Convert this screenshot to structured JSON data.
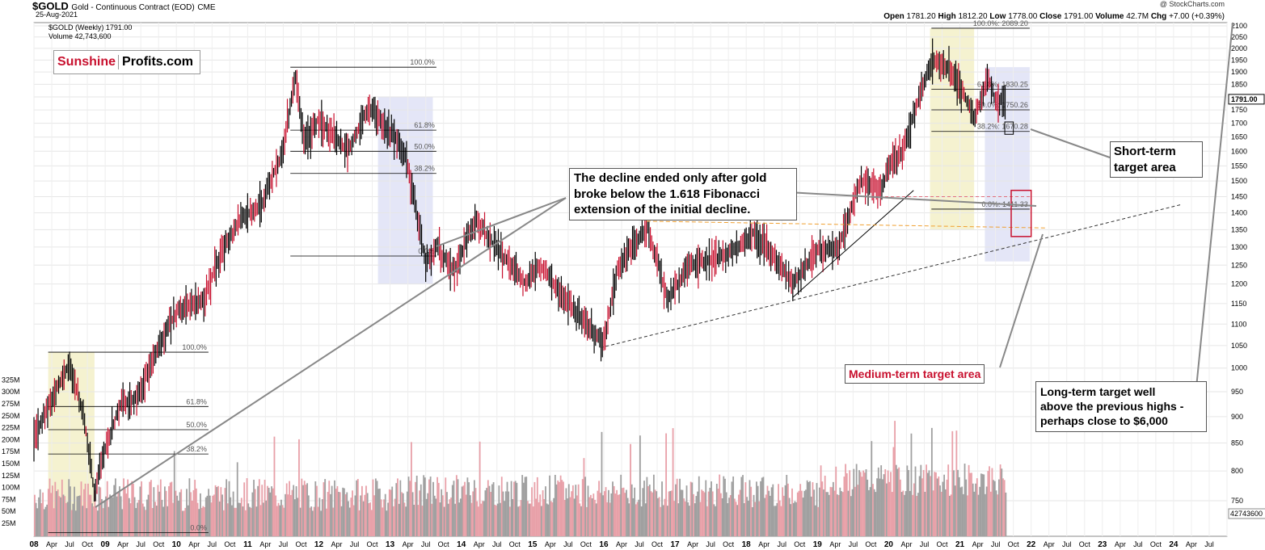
{
  "header": {
    "symbol": "$GOLD",
    "description": "Gold - Continuous Contract (EOD)",
    "exchange": "CME",
    "date": "25-Aug-2021",
    "legend_price": "$GOLD (Weekly) 1791.00",
    "legend_volume": "Volume 42,743,600",
    "credit": "@ StockCharts.com",
    "ohlc": {
      "open_label": "Open",
      "open": "1781.20",
      "high_label": "High",
      "high": "1812.20",
      "low_label": "Low",
      "low": "1778.00",
      "close_label": "Close",
      "close": "1791.00",
      "volume_label": "Volume",
      "volume": "42.7M",
      "chg_label": "Chg",
      "chg": "+7.00 (+0.39%)"
    }
  },
  "branding": {
    "part1": "Sunshine",
    "part2": "Profits.com"
  },
  "annotations": {
    "decline_note": [
      "The decline ended only after gold",
      "broke below the 1.618 Fibonacci",
      "extension of the initial decline."
    ],
    "medium_term": "Medium-term target area",
    "short_term": [
      "Short-term",
      "target area"
    ],
    "long_term": [
      "Long-term target well",
      "above the previous highs -",
      "perhaps close to $6,000"
    ]
  },
  "colors": {
    "up_candle": "#000000",
    "down_candle": "#c8102e",
    "volume_up": "#a0a0a0",
    "volume_down": "#e8a0a8",
    "highlight_yellow": "#f5f2d0",
    "highlight_blue": "#e4e6f7",
    "target_box": "#c8102e",
    "orange_line": "#f0a030"
  },
  "chart_data": {
    "type": "line",
    "title": "$GOLD Gold - Continuous Contract (EOD) CME",
    "x_ticks": [
      "08",
      "Apr",
      "Jul",
      "Oct",
      "09",
      "Apr",
      "Jul",
      "Oct",
      "10",
      "Apr",
      "Jul",
      "Oct",
      "11",
      "Apr",
      "Jul",
      "Oct",
      "12",
      "Apr",
      "Jul",
      "Oct",
      "13",
      "Apr",
      "Jul",
      "Oct",
      "14",
      "Apr",
      "Jul",
      "Oct",
      "15",
      "Apr",
      "Jul",
      "Oct",
      "16",
      "Apr",
      "Jul",
      "Oct",
      "17",
      "Apr",
      "Jul",
      "Oct",
      "18",
      "Apr",
      "Jul",
      "Oct",
      "19",
      "Apr",
      "Jul",
      "Oct",
      "20",
      "Apr",
      "Jul",
      "Oct",
      "21",
      "Apr",
      "Jul",
      "Oct",
      "22",
      "Apr",
      "Jul",
      "Oct",
      "23",
      "Apr",
      "Jul",
      "Oct",
      "24",
      "Apr",
      "Jul"
    ],
    "y_price_ticks": [
      750,
      800,
      850,
      900,
      950,
      1000,
      1050,
      1100,
      1150,
      1200,
      1250,
      1300,
      1350,
      1400,
      1450,
      1500,
      1550,
      1600,
      1650,
      1700,
      1750,
      1800,
      1850,
      1900,
      1950,
      2000,
      2050,
      2100
    ],
    "y_volume_ticks": [
      "25M",
      "50M",
      "75M",
      "100M",
      "125M",
      "150M",
      "175M",
      "200M",
      "225M",
      "250M",
      "275M",
      "300M",
      "325M"
    ],
    "last_price_label": "1791.00",
    "last_volume_label": "42743600",
    "series": [
      {
        "name": "$GOLD (Weekly)",
        "x": [
          2008.0,
          2008.2,
          2008.5,
          2008.7,
          2008.85,
          2009.0,
          2009.2,
          2009.45,
          2009.9,
          2010.0,
          2010.4,
          2010.55,
          2010.9,
          2011.2,
          2011.5,
          2011.67,
          2011.8,
          2012.0,
          2012.2,
          2012.4,
          2012.7,
          2012.9,
          2013.2,
          2013.5,
          2013.65,
          2013.9,
          2014.2,
          2014.4,
          2014.9,
          2015.1,
          2015.5,
          2015.9,
          2016.0,
          2016.2,
          2016.6,
          2016.9,
          2017.2,
          2017.6,
          2017.9,
          2018.1,
          2018.5,
          2018.65,
          2019.0,
          2019.3,
          2019.6,
          2019.9,
          2020.0,
          2020.2,
          2020.6,
          2020.9,
          2021.2,
          2021.4,
          2021.5,
          2021.65
        ],
        "y": [
          860,
          920,
          1010,
          900,
          760,
          840,
          920,
          940,
          1100,
          1130,
          1160,
          1250,
          1380,
          1430,
          1600,
          1890,
          1620,
          1720,
          1650,
          1600,
          1760,
          1700,
          1600,
          1250,
          1300,
          1230,
          1380,
          1320,
          1200,
          1250,
          1150,
          1070,
          1060,
          1240,
          1360,
          1160,
          1250,
          1270,
          1300,
          1340,
          1250,
          1200,
          1290,
          1300,
          1500,
          1470,
          1550,
          1600,
          1950,
          1900,
          1720,
          1880,
          1780,
          1791
        ]
      }
    ],
    "fibonacci_labels": [
      {
        "label": "100.0%",
        "value": 1920
      },
      {
        "label": "61.8%",
        "value": 1675
      },
      {
        "label": "50.0%",
        "value": 1600
      },
      {
        "label": "38.2%",
        "value": 1525
      },
      {
        "label": "0.0%",
        "value": 1275
      },
      {
        "label": "100.0%",
        "value": 1035
      },
      {
        "label": "61.8%",
        "value": 920
      },
      {
        "label": "50.0%",
        "value": 875
      },
      {
        "label": "38.2%",
        "value": 830
      },
      {
        "label": "0.0%",
        "value": 700
      },
      {
        "label": "100.0%: 2089.20",
        "value": 2089.2
      },
      {
        "label": "61.8%: 1830.25",
        "value": 1830.25
      },
      {
        "label": "50.0%: 1750.26",
        "value": 1750.26
      },
      {
        "label": "38.2%: 1670.28",
        "value": 1670.28
      },
      {
        "label": "0.0%: 1411.33",
        "value": 1411.33
      }
    ],
    "grid": true,
    "legend": "top-left"
  }
}
